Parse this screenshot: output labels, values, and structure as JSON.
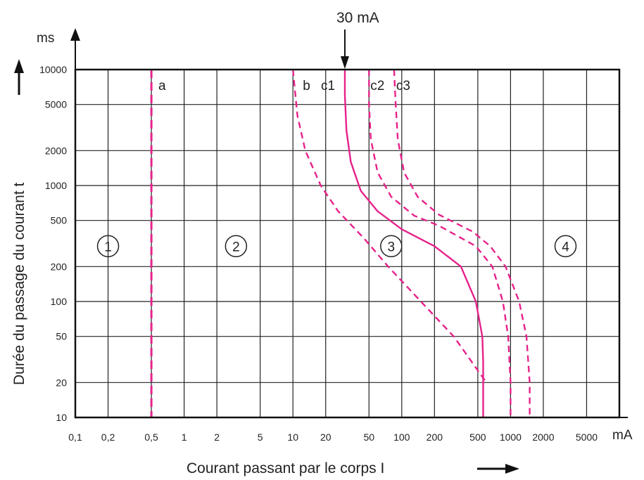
{
  "chart_data": {
    "type": "line",
    "x_scale": "log",
    "y_scale": "log",
    "xlabel": "Courant passant par le corps I",
    "ylabel": "Durée du passage du courant t",
    "x_unit": "mA",
    "y_unit": "ms",
    "xlim": [
      0.1,
      10000
    ],
    "ylim": [
      10,
      10000
    ],
    "grid": true,
    "x_ticks": [
      {
        "value": 0.1,
        "label": "0,1"
      },
      {
        "value": 0.2,
        "label": "0,2"
      },
      {
        "value": 0.5,
        "label": "0,5"
      },
      {
        "value": 1,
        "label": "1"
      },
      {
        "value": 2,
        "label": "2"
      },
      {
        "value": 5,
        "label": "5"
      },
      {
        "value": 10,
        "label": "10"
      },
      {
        "value": 20,
        "label": "20"
      },
      {
        "value": 50,
        "label": "50"
      },
      {
        "value": 100,
        "label": "100"
      },
      {
        "value": 200,
        "label": "200"
      },
      {
        "value": 500,
        "label": "500"
      },
      {
        "value": 1000,
        "label": "1000"
      },
      {
        "value": 2000,
        "label": "2000"
      },
      {
        "value": 5000,
        "label": "5000"
      }
    ],
    "y_ticks": [
      {
        "value": 10,
        "label": "10"
      },
      {
        "value": 20,
        "label": "20"
      },
      {
        "value": 50,
        "label": "50"
      },
      {
        "value": 100,
        "label": "100"
      },
      {
        "value": 200,
        "label": "200"
      },
      {
        "value": 500,
        "label": "500"
      },
      {
        "value": 1000,
        "label": "1000"
      },
      {
        "value": 2000,
        "label": "2000"
      },
      {
        "value": 5000,
        "label": "5000"
      },
      {
        "value": 10000,
        "label": "10000"
      }
    ],
    "series": [
      {
        "name": "a",
        "style": "dashed",
        "points": [
          [
            0.5,
            10000
          ],
          [
            0.5,
            10
          ]
        ]
      },
      {
        "name": "b",
        "style": "dashed",
        "points": [
          [
            10,
            10000
          ],
          [
            11,
            4000
          ],
          [
            13,
            2000
          ],
          [
            18,
            1000
          ],
          [
            26,
            600
          ],
          [
            45,
            350
          ],
          [
            75,
            200
          ],
          [
            150,
            100
          ],
          [
            300,
            50
          ],
          [
            600,
            20
          ]
        ]
      },
      {
        "name": "c1",
        "style": "solid",
        "points": [
          [
            30,
            10000
          ],
          [
            30,
            6000
          ],
          [
            31,
            3000
          ],
          [
            34,
            1600
          ],
          [
            42,
            900
          ],
          [
            60,
            600
          ],
          [
            100,
            420
          ],
          [
            200,
            300
          ],
          [
            350,
            200
          ],
          [
            480,
            100
          ],
          [
            550,
            50
          ],
          [
            560,
            30
          ],
          [
            560,
            10
          ]
        ]
      },
      {
        "name": "c2",
        "style": "dashed",
        "points": [
          [
            50,
            10000
          ],
          [
            50,
            5000
          ],
          [
            52,
            2500
          ],
          [
            60,
            1300
          ],
          [
            80,
            800
          ],
          [
            130,
            550
          ],
          [
            220,
            450
          ],
          [
            480,
            300
          ],
          [
            680,
            200
          ],
          [
            850,
            100
          ],
          [
            950,
            50
          ],
          [
            1000,
            20
          ],
          [
            1000,
            10
          ]
        ]
      },
      {
        "name": "c3",
        "style": "dashed",
        "points": [
          [
            85,
            10000
          ],
          [
            88,
            5000
          ],
          [
            92,
            2500
          ],
          [
            105,
            1300
          ],
          [
            140,
            800
          ],
          [
            220,
            560
          ],
          [
            450,
            400
          ],
          [
            650,
            300
          ],
          [
            900,
            200
          ],
          [
            1200,
            100
          ],
          [
            1400,
            50
          ],
          [
            1500,
            20
          ],
          [
            1500,
            10
          ]
        ]
      }
    ],
    "zones": [
      {
        "label": "1",
        "x": 0.2,
        "y": 300
      },
      {
        "label": "2",
        "x": 3,
        "y": 300
      },
      {
        "label": "3",
        "x": 80,
        "y": 300
      },
      {
        "label": "4",
        "x": 3200,
        "y": 300
      }
    ],
    "annotation": {
      "label": "30 mA",
      "x": 30
    },
    "colors": {
      "curve": "#e6228a",
      "axis": "#111111",
      "grid": "#222222"
    }
  }
}
